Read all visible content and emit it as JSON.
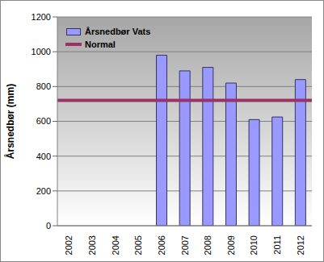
{
  "chart_data": {
    "type": "bar",
    "y_label": "Årsnedbør (mm)",
    "categories": [
      "2002",
      "2003",
      "2004",
      "2005",
      "2006",
      "2007",
      "2008",
      "2009",
      "2010",
      "2011",
      "2012"
    ],
    "series": [
      {
        "name": "Årsnedbør Vats",
        "type": "bar",
        "color": "#9999ff",
        "values": [
          null,
          null,
          null,
          null,
          980,
          890,
          910,
          820,
          610,
          625,
          840
        ]
      },
      {
        "name": "Normal",
        "type": "hline",
        "color": "#993366",
        "value": 720
      }
    ],
    "ylim": [
      0,
      1200
    ],
    "yticks": [
      0,
      200,
      400,
      600,
      800,
      1000,
      1200
    ],
    "grid": true,
    "legend": "upper left"
  }
}
